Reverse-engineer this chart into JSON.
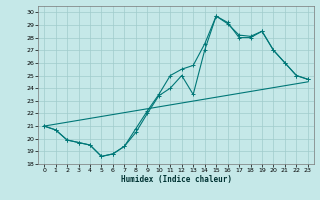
{
  "xlabel": "Humidex (Indice chaleur)",
  "bg_color": "#c5e8e8",
  "grid_color": "#a0cccc",
  "line_color": "#007777",
  "xlim": [
    -0.5,
    23.5
  ],
  "ylim": [
    18,
    30.5
  ],
  "xticks": [
    0,
    1,
    2,
    3,
    4,
    5,
    6,
    7,
    8,
    9,
    10,
    11,
    12,
    13,
    14,
    15,
    16,
    17,
    18,
    19,
    20,
    21,
    22,
    23
  ],
  "yticks": [
    18,
    19,
    20,
    21,
    22,
    23,
    24,
    25,
    26,
    27,
    28,
    29,
    30
  ],
  "line1_x": [
    0,
    1,
    2,
    3,
    4,
    5,
    6,
    7,
    8,
    9,
    10,
    11,
    12,
    13,
    14,
    15,
    16,
    17,
    18,
    19,
    20,
    21,
    22,
    23
  ],
  "line1_y": [
    21.0,
    20.7,
    19.9,
    19.7,
    19.5,
    18.6,
    18.8,
    19.4,
    20.5,
    22.0,
    23.4,
    24.0,
    25.0,
    23.5,
    27.0,
    29.7,
    29.2,
    28.0,
    28.0,
    28.5,
    27.0,
    26.0,
    25.0,
    24.7
  ],
  "line2_x": [
    0,
    1,
    2,
    3,
    4,
    5,
    6,
    7,
    8,
    9,
    10,
    11,
    12,
    13,
    14,
    15,
    16,
    17,
    18,
    19,
    20,
    21,
    22,
    23
  ],
  "line2_y": [
    21.0,
    20.7,
    19.9,
    19.7,
    19.5,
    18.6,
    18.8,
    19.4,
    20.8,
    22.2,
    23.5,
    25.0,
    25.5,
    25.8,
    27.5,
    29.7,
    29.1,
    28.2,
    28.1,
    28.5,
    27.0,
    26.0,
    25.0,
    24.7
  ],
  "line3_x": [
    0,
    23
  ],
  "line3_y": [
    21.0,
    24.5
  ]
}
